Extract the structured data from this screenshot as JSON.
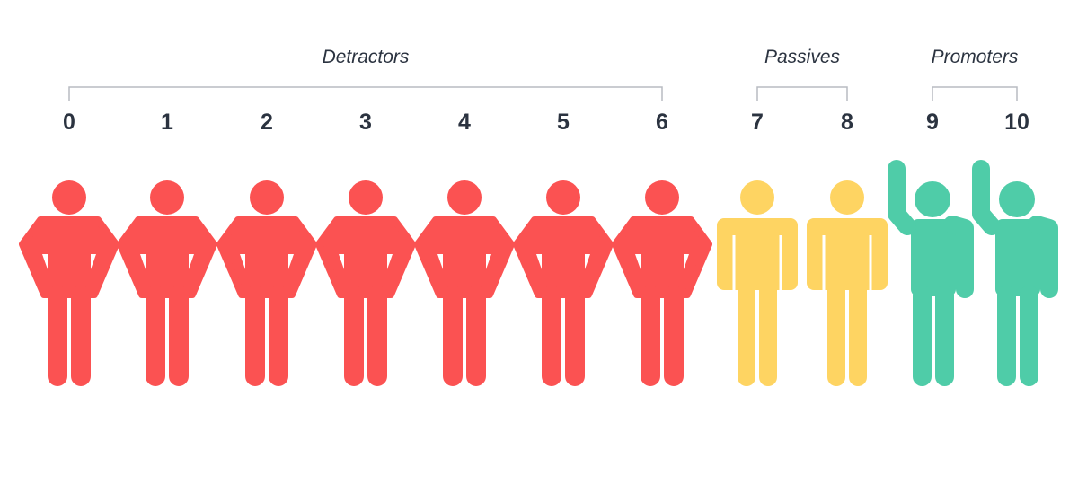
{
  "groups": [
    {
      "label": "Detractors",
      "scores": [
        "0",
        "1",
        "2",
        "3",
        "4",
        "5",
        "6"
      ],
      "color": "#fb5252"
    },
    {
      "label": "Passives",
      "scores": [
        "7",
        "8"
      ],
      "color": "#fed462"
    },
    {
      "label": "Promoters",
      "scores": [
        "9",
        "10"
      ],
      "color": "#4fcca8"
    }
  ]
}
